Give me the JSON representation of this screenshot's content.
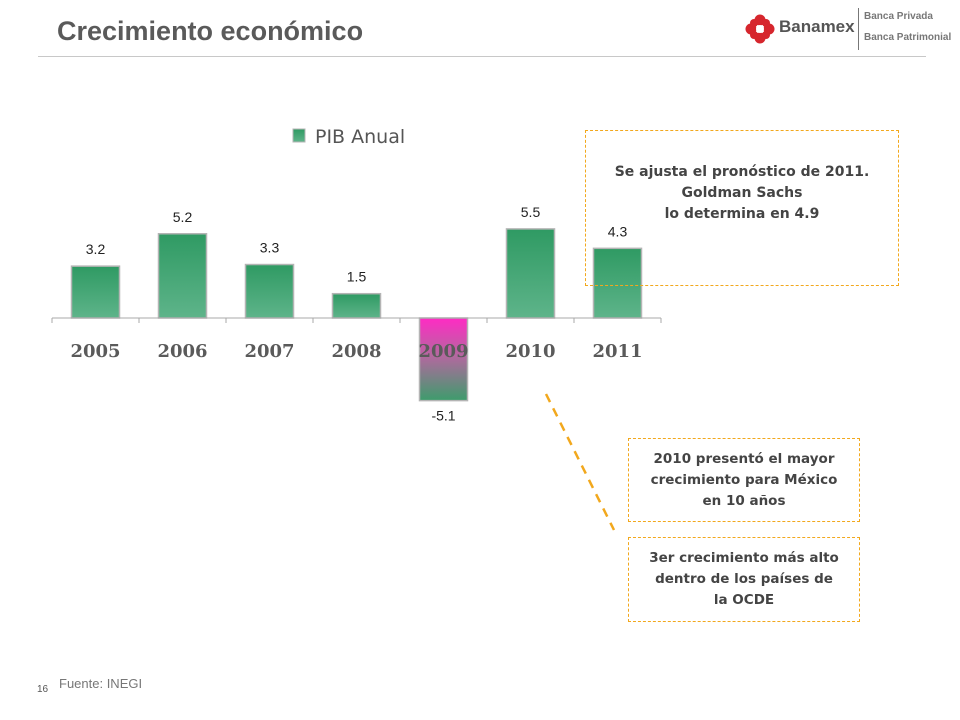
{
  "header": {
    "title": "Crecimiento económico",
    "logo": {
      "brand": "Banamex",
      "line1": "Banca Privada",
      "line2": "Banca Patrimonial"
    }
  },
  "chart_data": {
    "type": "bar",
    "title": "",
    "xlabel": "",
    "ylabel": "",
    "categories": [
      "2005",
      "2006",
      "2007",
      "2008",
      "2009",
      "2010",
      "2011"
    ],
    "series": [
      {
        "name": "PIB Anual",
        "values": [
          3.2,
          5.2,
          3.3,
          1.5,
          -5.1,
          5.5,
          4.3
        ]
      }
    ],
    "data_labels": [
      "3.2",
      "5.2",
      "3.3",
      "1.5",
      "-5.1",
      "5.5",
      "4.3"
    ],
    "ylim": [
      -6.0,
      7.0
    ],
    "grid": false,
    "legend_position": "top",
    "colors": {
      "positive": "#3d9c6c",
      "negative_top": "#ff2bc4",
      "negative_bottom": "#3d9c6c",
      "bar_border": "#b4b4b4"
    }
  },
  "notes": {
    "forecast": "Se ajusta el pronóstico de 2011.\nGoldman Sachs\nlo determina en 4.9",
    "growth_2010": "2010 presentó el mayor\ncrecimiento para México\nen 10 años",
    "ocde": "3er crecimiento más alto\ndentro de los países de\nla OCDE"
  },
  "footer": {
    "source": "Fuente: INEGI",
    "page_number": "16"
  }
}
